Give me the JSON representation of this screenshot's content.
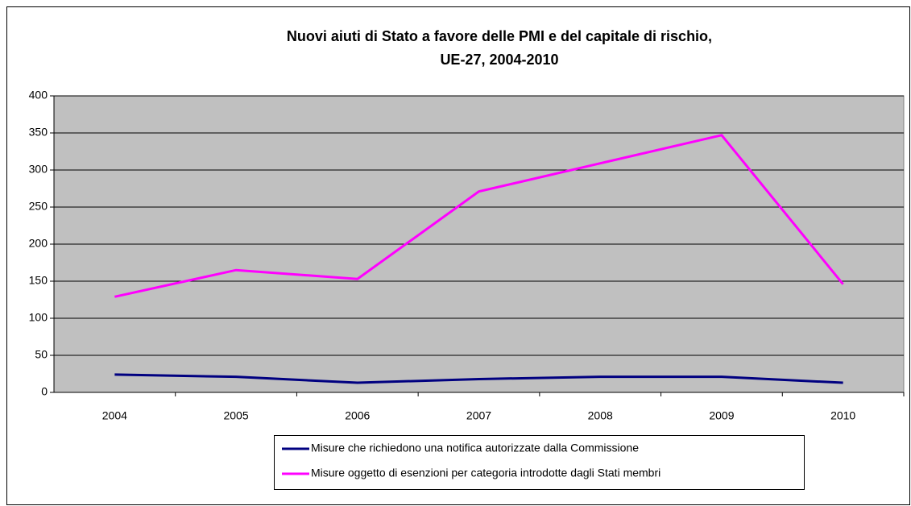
{
  "chart_data": {
    "type": "line",
    "title": [
      "Nuovi aiuti di Stato a favore delle PMI e del capitale di rischio,",
      "UE-27, 2004-2010"
    ],
    "categories": [
      "2004",
      "2005",
      "2006",
      "2007",
      "2008",
      "2009",
      "2010"
    ],
    "series": [
      {
        "name": "Misure che richiedono una notifica autorizzate dalla Commissione",
        "color": "#000080",
        "values": [
          24,
          21,
          13,
          18,
          21,
          21,
          13
        ]
      },
      {
        "name": "Misure oggetto di esenzioni per categoria introdotte dagli Stati membri",
        "color": "#ff00ff",
        "values": [
          129,
          165,
          153,
          271,
          309,
          347,
          146
        ]
      }
    ],
    "ylim": [
      0,
      400
    ],
    "yticks": [
      0,
      50,
      100,
      150,
      200,
      250,
      300,
      350,
      400
    ],
    "grid": true,
    "legend": "bottom"
  }
}
